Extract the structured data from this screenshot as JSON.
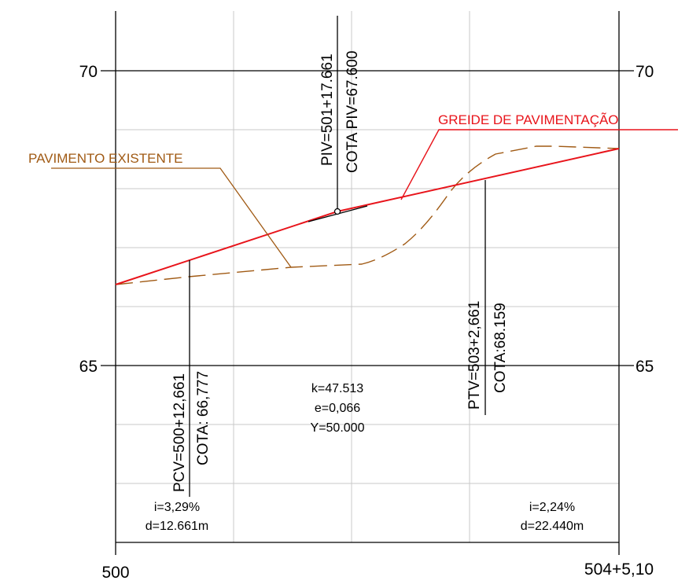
{
  "colors": {
    "grid": "#c8c8c8",
    "frame": "#000000",
    "greide": "#e8141b",
    "existente": "#a05a14",
    "text": "#000000"
  },
  "axis": {
    "y_left_70": "70",
    "y_left_65": "65",
    "y_right_70": "70",
    "y_right_65": "65",
    "x_start": "500",
    "x_end": "504+5,10"
  },
  "labels": {
    "greide": "GREIDE DE PAVIMENTAÇÃO",
    "pavimento": "PAVIMENTO EXISTENTE",
    "piv_station": "PIV=501+17.661",
    "piv_cota": "COTA PIV=67.600",
    "pcv_station": "PCV=500+12,661",
    "pcv_cota": "COTA: 66,777",
    "ptv_station": "PTV=503+2,661",
    "ptv_cota": "COTA:68.159",
    "curve_k": "k=47.513",
    "curve_e": "e=0,066",
    "curve_y": "Y=50.000",
    "left_slope": "i=3,29%",
    "left_dist": "d=12.661m",
    "right_slope": "i=2,24%",
    "right_dist": "d=22.440m"
  }
}
